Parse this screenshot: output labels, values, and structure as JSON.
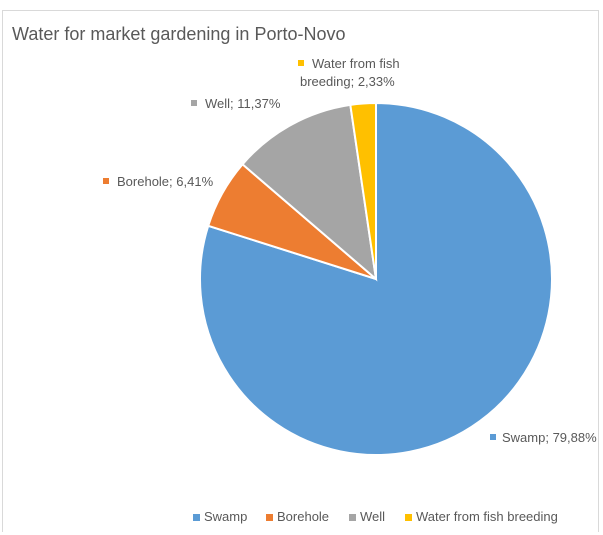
{
  "chart_data": {
    "type": "pie",
    "title": "Water for market gardening in Porto-Novo",
    "slices": [
      {
        "name": "Swamp",
        "value": 79.88,
        "label": "Swamp; 79,88%",
        "color": "#5b9bd5"
      },
      {
        "name": "Borehole",
        "value": 6.41,
        "label": "Borehole; 6,41%",
        "color": "#ed7d31"
      },
      {
        "name": "Well",
        "value": 11.37,
        "label": "Well; 11,37%",
        "color": "#a5a5a5"
      },
      {
        "name": "Water from fish breeding",
        "value": 2.33,
        "label_lines": [
          "Water from fish",
          "breeding; 2,33%"
        ],
        "color": "#ffc000"
      }
    ],
    "legend": {
      "position": "bottom",
      "entries": [
        "Swamp",
        "Borehole",
        "Well",
        "Water from fish breeding"
      ]
    }
  }
}
